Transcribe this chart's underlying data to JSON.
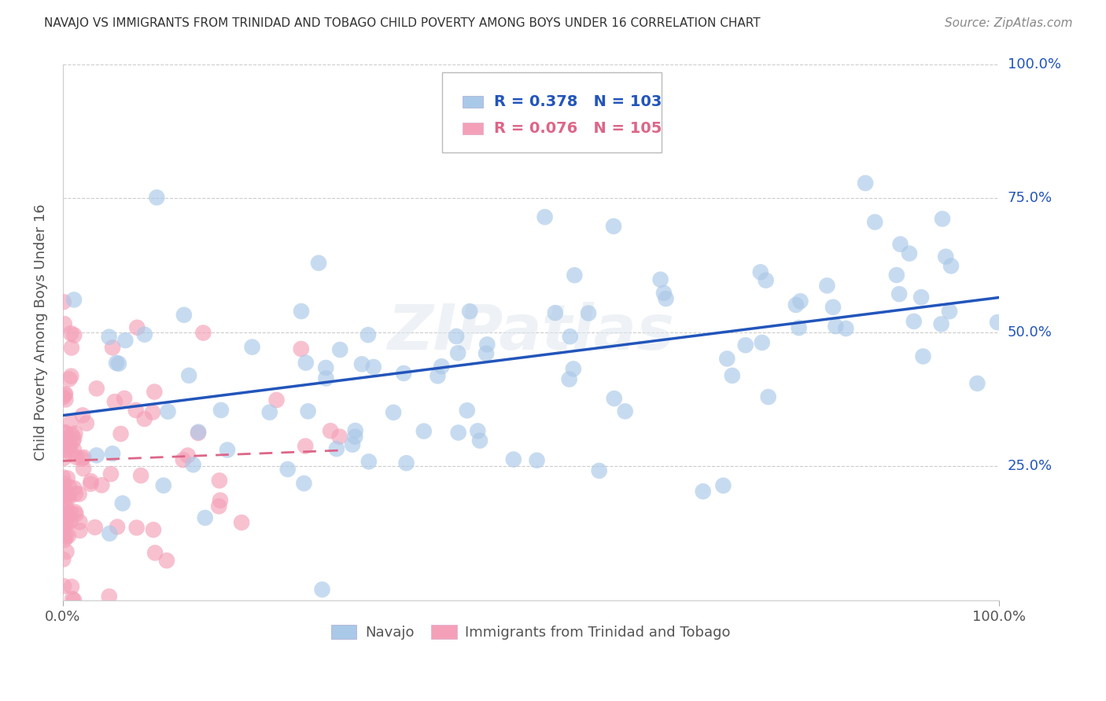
{
  "title": "NAVAJO VS IMMIGRANTS FROM TRINIDAD AND TOBAGO CHILD POVERTY AMONG BOYS UNDER 16 CORRELATION CHART",
  "source": "Source: ZipAtlas.com",
  "ylabel": "Child Poverty Among Boys Under 16",
  "navajo_R": 0.378,
  "navajo_N": 103,
  "tt_R": 0.076,
  "tt_N": 105,
  "navajo_color": "#aac8e8",
  "tt_color": "#f4a0b8",
  "navajo_line_color": "#2255bb",
  "tt_line_color": "#dd6688",
  "background_color": "#ffffff",
  "grid_color": "#cccccc",
  "xlim": [
    0.0,
    1.0
  ],
  "ylim": [
    0.0,
    1.0
  ],
  "navajo_line_x0": 0.0,
  "navajo_line_y0": 0.345,
  "navajo_line_x1": 1.0,
  "navajo_line_y1": 0.565,
  "tt_line_x0": 0.0,
  "tt_line_y0": 0.26,
  "tt_line_x1": 0.3,
  "tt_line_y1": 0.28
}
